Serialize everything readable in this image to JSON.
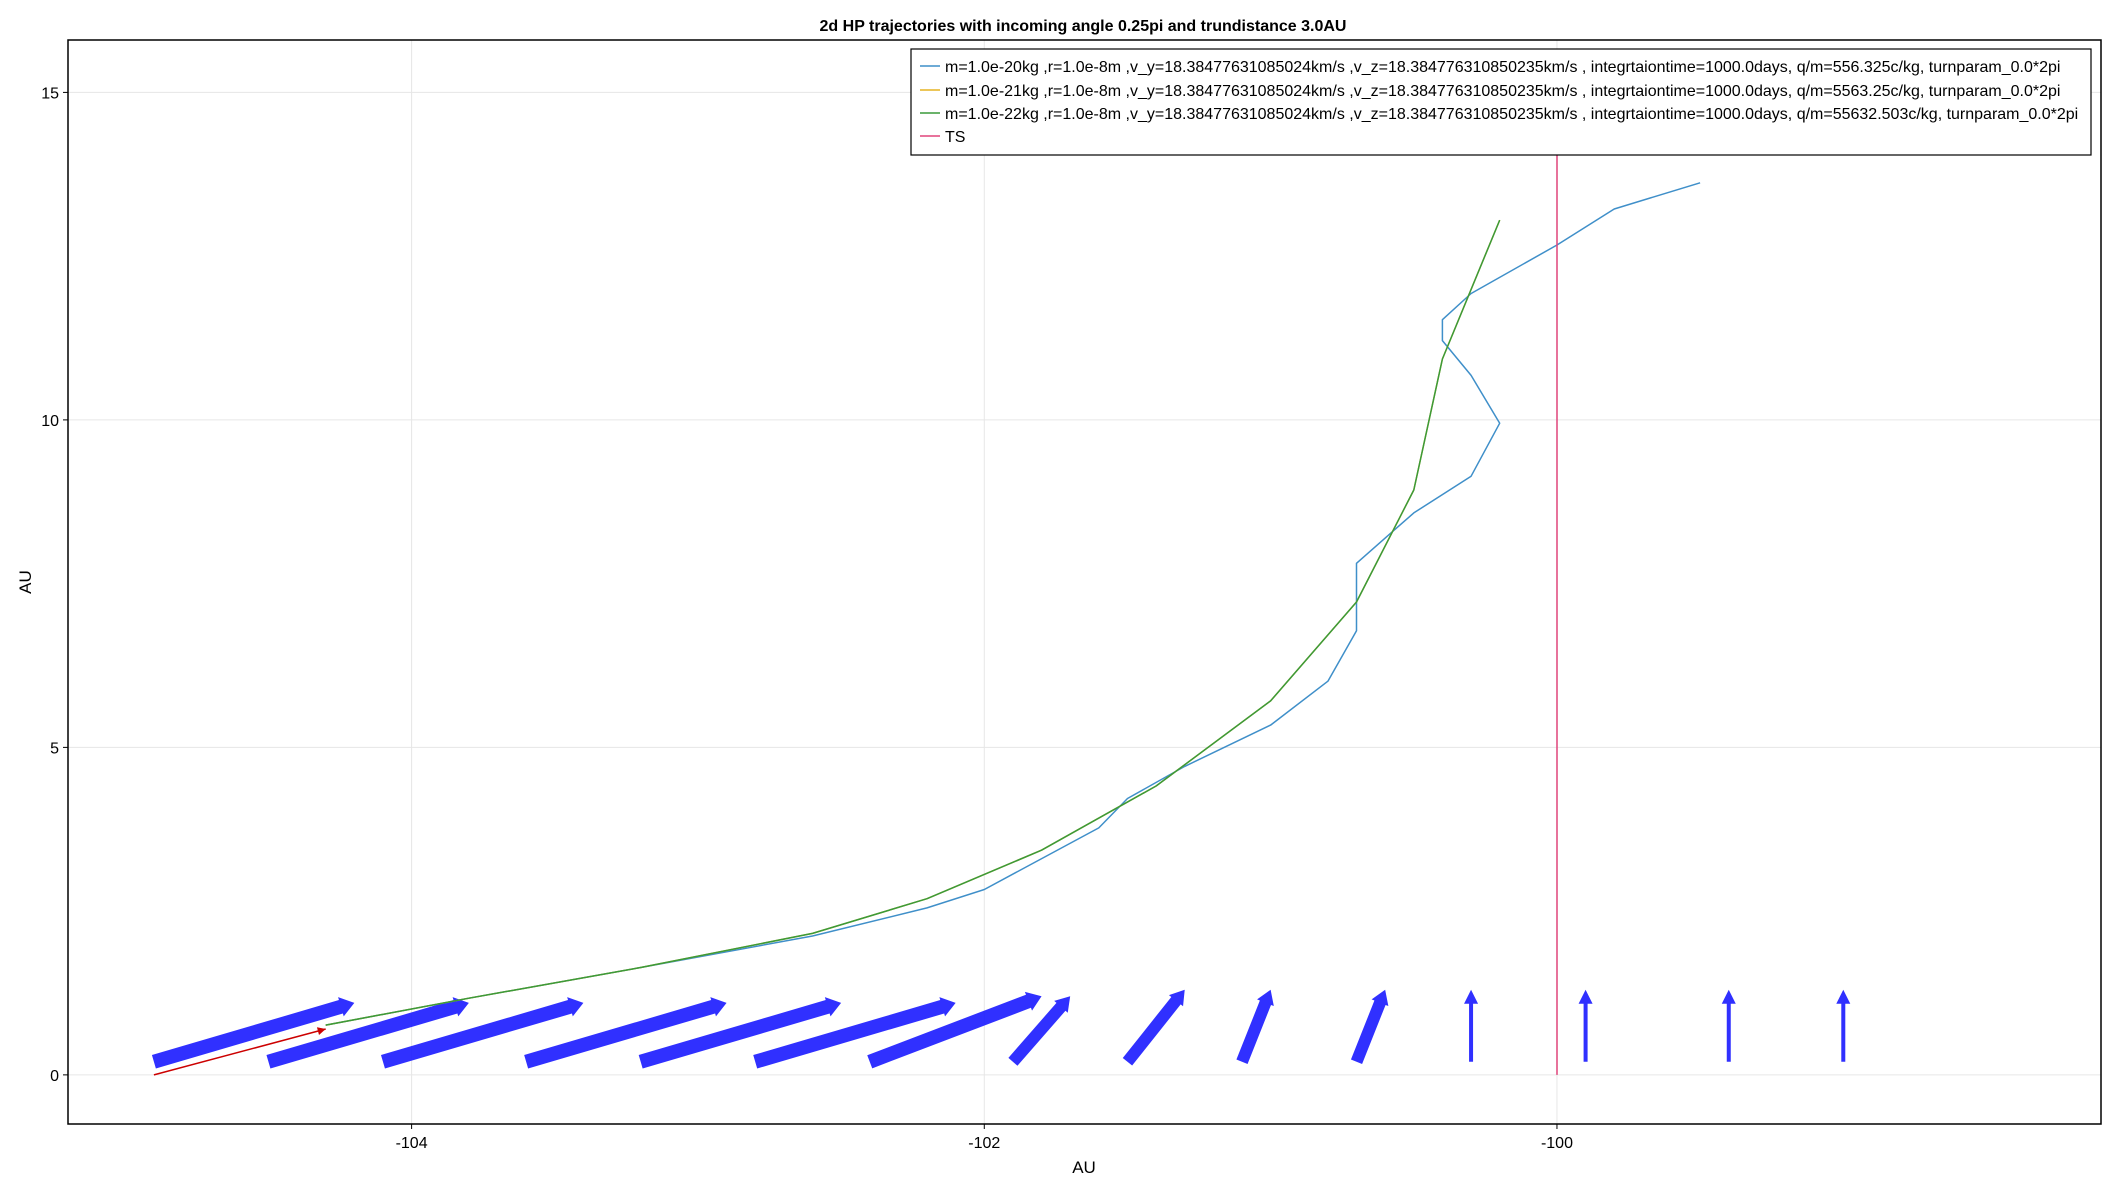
{
  "colors": {
    "series1": "#3f8fc9",
    "series2": "#e6b422",
    "series3": "#3a9a3a",
    "ts": "#e0457b",
    "arrows": "#1a1aff",
    "red_arrow": "#cc0000",
    "grid": "#e6e6e6"
  },
  "chart_data": {
    "type": "line",
    "title": "2d HP trajectories with incoming angle 0.25pi and trundistance 3.0AU",
    "xlabel": "AU",
    "ylabel": "AU",
    "xlim": [
      -105.2,
      -98.1
    ],
    "ylim": [
      -0.75,
      15.8
    ],
    "xticks": [
      -104,
      -102,
      -100
    ],
    "yticks": [
      0,
      5,
      10,
      15
    ],
    "xtick_labels": [
      "-104",
      "-102",
      "-100"
    ],
    "ytick_labels": [
      "0",
      "5",
      "10",
      "15"
    ],
    "grid": true,
    "legend_position": "top-right",
    "series": [
      {
        "name": "m=1.0e-20kg ,r=1.0e-8m ,v_y=18.38477631085024km/s ,v_z=18.384776310850235km/s , integrtaiontime=1000.0days, q/m=556.325c/kg, turnparam_0.0*2pi",
        "color_key": "series1",
        "x": [
          -104.3,
          -103.8,
          -103.2,
          -102.6,
          -102.2,
          -102.0,
          -101.6,
          -101.5,
          -101.3,
          -101.0,
          -100.8,
          -100.7,
          -100.7,
          -100.5,
          -100.3,
          -100.2,
          -100.3,
          -100.4,
          -100.4,
          -100.3,
          -100.0,
          -99.8,
          -99.5
        ],
        "y": [
          0.76,
          1.17,
          1.64,
          2.12,
          2.55,
          2.83,
          3.77,
          4.22,
          4.71,
          5.34,
          6.01,
          6.78,
          7.81,
          8.58,
          9.14,
          9.95,
          10.68,
          11.21,
          11.53,
          11.93,
          12.67,
          13.22,
          13.62
        ]
      },
      {
        "name": "m=1.0e-21kg ,r=1.0e-8m ,v_y=18.38477631085024km/s ,v_z=18.384776310850235km/s , integrtaiontime=1000.0days, q/m=5563.25c/kg, turnparam_0.0*2pi",
        "color_key": "series2",
        "x": [
          -104.3,
          -103.8,
          -103.2,
          -102.6,
          -102.2,
          -101.8,
          -101.4,
          -101.0,
          -100.7,
          -100.5,
          -100.4,
          -100.2
        ],
        "y": [
          0.76,
          1.17,
          1.64,
          2.16,
          2.69,
          3.43,
          4.41,
          5.71,
          7.22,
          8.93,
          10.93,
          13.05
        ]
      },
      {
        "name": "m=1.0e-22kg ,r=1.0e-8m ,v_y=18.38477631085024km/s ,v_z=18.384776310850235km/s , integrtaiontime=1000.0days, q/m=55632.503c/kg, turnparam_0.0*2pi",
        "color_key": "series3",
        "x": [
          -104.3,
          -103.8,
          -103.2,
          -102.6,
          -102.2,
          -101.8,
          -101.4,
          -101.0,
          -100.7,
          -100.5,
          -100.4,
          -100.2
        ],
        "y": [
          0.76,
          1.17,
          1.64,
          2.16,
          2.69,
          3.43,
          4.41,
          5.71,
          7.22,
          8.93,
          10.93,
          13.05
        ]
      },
      {
        "name": "TS",
        "color_key": "ts",
        "x": [
          -100.0,
          -100.0
        ],
        "y": [
          0,
          14.9
        ]
      }
    ],
    "incoming_vector": {
      "x": [
        -104.9,
        -104.3
      ],
      "y": [
        0.0,
        0.7
      ],
      "color_key": "red_arrow"
    },
    "field_arrows": {
      "color_key": "arrows",
      "items": [
        {
          "x": -104.9,
          "y": 0.2,
          "dx": 0.7,
          "dy": 0.9
        },
        {
          "x": -104.5,
          "y": 0.2,
          "dx": 0.7,
          "dy": 0.9
        },
        {
          "x": -104.1,
          "y": 0.2,
          "dx": 0.7,
          "dy": 0.9
        },
        {
          "x": -103.6,
          "y": 0.2,
          "dx": 0.7,
          "dy": 0.9
        },
        {
          "x": -103.2,
          "y": 0.2,
          "dx": 0.7,
          "dy": 0.9
        },
        {
          "x": -102.8,
          "y": 0.2,
          "dx": 0.7,
          "dy": 0.9
        },
        {
          "x": -102.4,
          "y": 0.2,
          "dx": 0.6,
          "dy": 1.0
        },
        {
          "x": -101.9,
          "y": 0.2,
          "dx": 0.2,
          "dy": 1.0
        },
        {
          "x": -101.5,
          "y": 0.2,
          "dx": 0.2,
          "dy": 1.1
        },
        {
          "x": -101.1,
          "y": 0.2,
          "dx": 0.1,
          "dy": 1.1
        },
        {
          "x": -100.7,
          "y": 0.2,
          "dx": 0.1,
          "dy": 1.1
        },
        {
          "x": -100.3,
          "y": 0.2,
          "dx": 0.0,
          "dy": 1.1
        },
        {
          "x": -99.9,
          "y": 0.2,
          "dx": 0.0,
          "dy": 1.1
        },
        {
          "x": -99.4,
          "y": 0.2,
          "dx": 0.0,
          "dy": 1.1
        },
        {
          "x": -99.0,
          "y": 0.2,
          "dx": 0.0,
          "dy": 1.1
        }
      ]
    }
  }
}
